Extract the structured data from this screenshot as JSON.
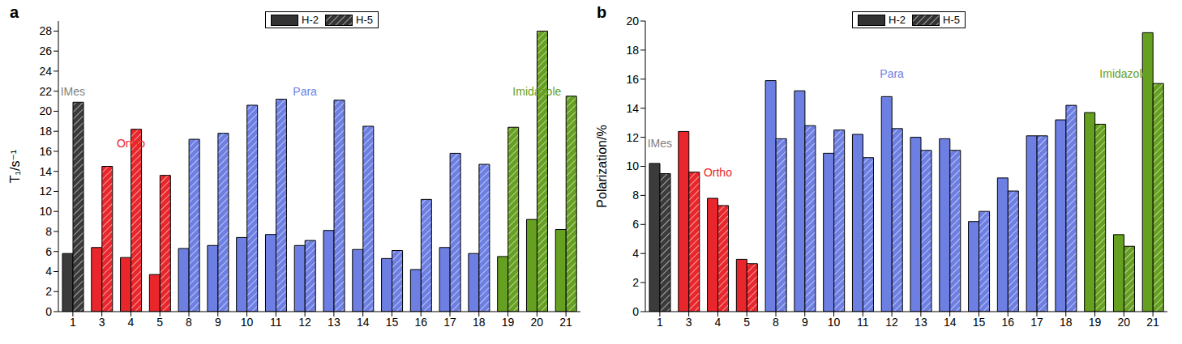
{
  "chart_data": [
    {
      "type": "bar",
      "title": "a",
      "y_label": "T₁/s⁻¹",
      "legend": "top",
      "categories": [
        "1",
        "3",
        "4",
        "5",
        "8",
        "9",
        "10",
        "11",
        "12",
        "13",
        "14",
        "15",
        "16",
        "17",
        "18",
        "19",
        "20",
        "21"
      ],
      "ylim": [
        0,
        29
      ],
      "yticks": [
        0,
        2,
        4,
        6,
        8,
        10,
        12,
        14,
        16,
        18,
        20,
        22,
        24,
        26,
        28
      ],
      "grid": false,
      "series": [
        {
          "name": "H-2",
          "color": "#333333",
          "colors": [
            "#3b3b3b",
            "#e8262b",
            "#e8262b",
            "#e8262b",
            "#6d7fe3",
            "#6d7fe3",
            "#6d7fe3",
            "#6d7fe3",
            "#6d7fe3",
            "#6d7fe3",
            "#6d7fe3",
            "#6d7fe3",
            "#6d7fe3",
            "#6d7fe3",
            "#6d7fe3",
            "#66a020",
            "#66a020",
            "#66a020"
          ],
          "values": [
            5.8,
            6.4,
            5.4,
            3.7,
            6.3,
            6.6,
            7.4,
            7.7,
            6.6,
            8.1,
            6.2,
            5.3,
            4.2,
            6.4,
            5.8,
            5.5,
            9.2,
            8.2
          ]
        },
        {
          "name": "H-5",
          "color": "#333333",
          "colors": [
            "#3b3b3b",
            "#e8262b",
            "#e8262b",
            "#e8262b",
            "#6d7fe3",
            "#6d7fe3",
            "#6d7fe3",
            "#6d7fe3",
            "#6d7fe3",
            "#6d7fe3",
            "#6d7fe3",
            "#6d7fe3",
            "#6d7fe3",
            "#6d7fe3",
            "#6d7fe3",
            "#66a020",
            "#66a020",
            "#66a020"
          ],
          "values": [
            20.9,
            14.5,
            18.2,
            13.6,
            17.2,
            17.8,
            20.6,
            21.2,
            7.1,
            21.1,
            18.5,
            6.1,
            11.2,
            15.8,
            14.7,
            18.4,
            28.0,
            21.5
          ]
        }
      ],
      "annotations": [
        {
          "text": "IMes",
          "color": "#808080",
          "x": "1",
          "y": 22
        },
        {
          "text": "Ortho",
          "color": "#e8262b",
          "x": "4",
          "y": 16.8
        },
        {
          "text": "Para",
          "color": "#6d7fe3",
          "x": "12",
          "y": 22
        },
        {
          "text": "Imidazole",
          "color": "#66a020",
          "x": "20",
          "y": 22
        }
      ]
    },
    {
      "type": "bar",
      "title": "b",
      "y_label": "Polarization/%",
      "legend": "top",
      "categories": [
        "1",
        "3",
        "4",
        "5",
        "8",
        "9",
        "10",
        "11",
        "12",
        "13",
        "14",
        "15",
        "16",
        "17",
        "18",
        "19",
        "20",
        "21"
      ],
      "ylim": [
        0,
        20
      ],
      "yticks": [
        0,
        2,
        4,
        6,
        8,
        10,
        12,
        14,
        16,
        18,
        20
      ],
      "grid": false,
      "series": [
        {
          "name": "H-2",
          "color": "#333333",
          "colors": [
            "#3b3b3b",
            "#e8262b",
            "#e8262b",
            "#e8262b",
            "#6d7fe3",
            "#6d7fe3",
            "#6d7fe3",
            "#6d7fe3",
            "#6d7fe3",
            "#6d7fe3",
            "#6d7fe3",
            "#6d7fe3",
            "#6d7fe3",
            "#6d7fe3",
            "#6d7fe3",
            "#66a020",
            "#66a020",
            "#66a020"
          ],
          "values": [
            10.2,
            12.4,
            7.8,
            3.6,
            15.9,
            15.2,
            10.9,
            12.2,
            14.8,
            12.0,
            11.9,
            6.2,
            9.2,
            12.1,
            13.2,
            13.7,
            5.3,
            19.2
          ]
        },
        {
          "name": "H-5",
          "color": "#333333",
          "colors": [
            "#3b3b3b",
            "#e8262b",
            "#e8262b",
            "#e8262b",
            "#6d7fe3",
            "#6d7fe3",
            "#6d7fe3",
            "#6d7fe3",
            "#6d7fe3",
            "#6d7fe3",
            "#6d7fe3",
            "#6d7fe3",
            "#6d7fe3",
            "#6d7fe3",
            "#6d7fe3",
            "#66a020",
            "#66a020",
            "#66a020"
          ],
          "values": [
            9.5,
            9.6,
            7.3,
            3.3,
            11.9,
            12.8,
            12.5,
            10.6,
            12.6,
            11.1,
            11.1,
            6.9,
            8.3,
            12.1,
            14.2,
            12.9,
            4.5,
            15.7
          ]
        }
      ],
      "annotations": [
        {
          "text": "IMes",
          "color": "#808080",
          "x": "1",
          "y": 11.6
        },
        {
          "text": "Ortho",
          "color": "#e8262b",
          "x": "4",
          "y": 9.6
        },
        {
          "text": "Para",
          "color": "#6d7fe3",
          "x": "12",
          "y": 16.4
        },
        {
          "text": "Imidazole",
          "color": "#66a020",
          "x": "20",
          "y": 16.4
        }
      ]
    }
  ]
}
